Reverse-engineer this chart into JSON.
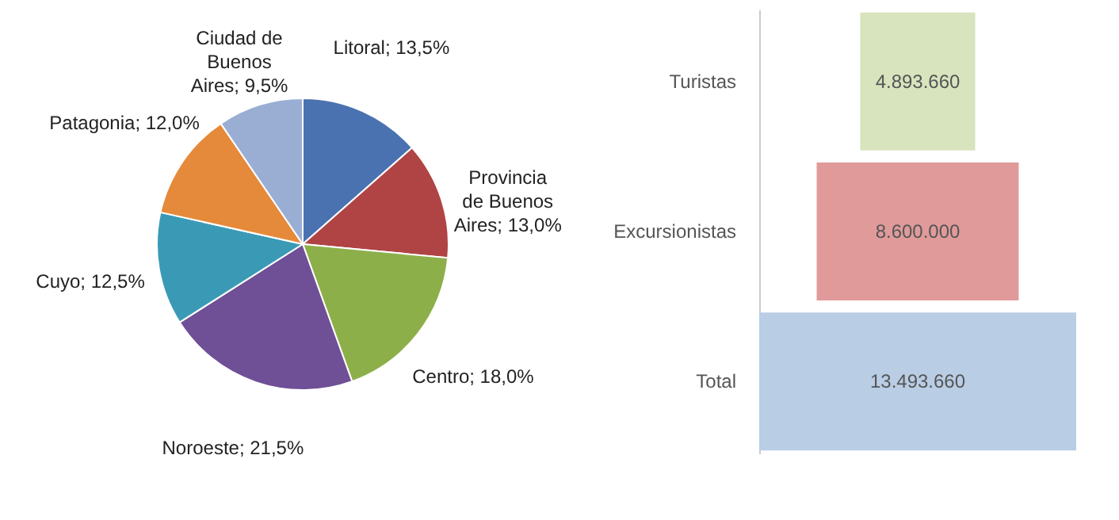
{
  "chart_data": [
    {
      "type": "pie",
      "categories": [
        "Litoral",
        "Provincia de Buenos Aires",
        "Centro",
        "Noroeste",
        "Cuyo",
        "Patagonia",
        "Ciudad de Buenos Aires"
      ],
      "values": [
        13.5,
        13.0,
        18.0,
        21.5,
        12.5,
        12.0,
        9.5
      ],
      "value_labels": [
        "13,5%",
        "13,0%",
        "18,0%",
        "21,5%",
        "12,5%",
        "12,0%",
        "9,5%"
      ],
      "colors": [
        "#4a72b0",
        "#b04444",
        "#8daf4a",
        "#6f4f96",
        "#3a9ab5",
        "#e58a3a",
        "#9aaed4"
      ]
    },
    {
      "type": "other",
      "categories": [
        "Turistas",
        "Excursionistas",
        "Total"
      ],
      "values": [
        4893660,
        8600000,
        13493660
      ],
      "value_labels": [
        "4.893.660",
        "8.600.000",
        "13.493.660"
      ],
      "colors": [
        "#d7e4bd",
        "#e09a9a",
        "#b9cde5"
      ]
    }
  ]
}
